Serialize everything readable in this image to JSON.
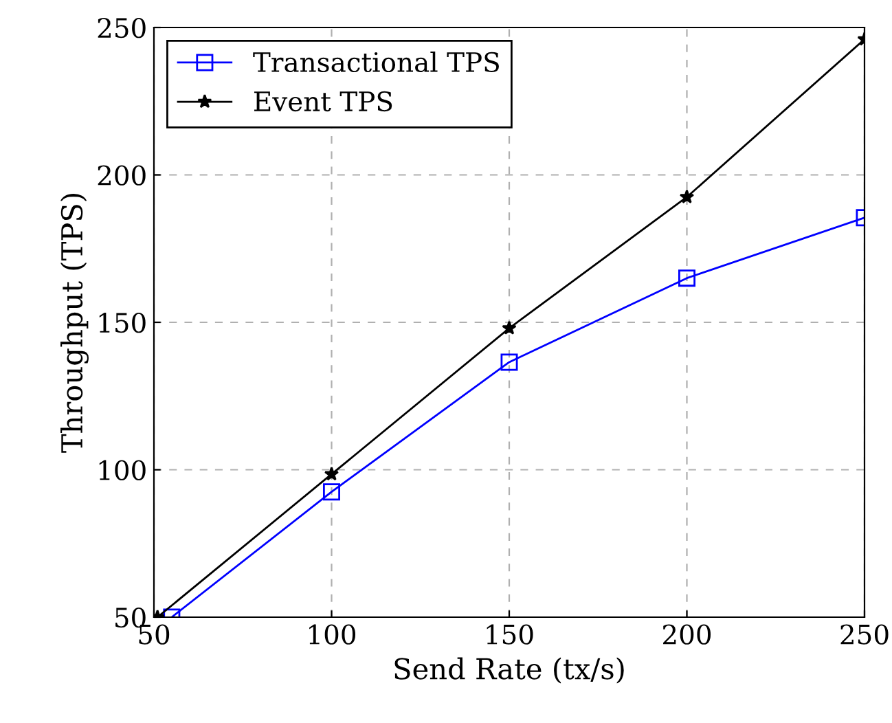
{
  "chart_data": {
    "type": "line",
    "xlabel": "Send Rate (tx/s)",
    "ylabel": "Throughput (TPS)",
    "series": [
      {
        "name": "Transactional TPS",
        "color": "#0000ff",
        "marker": "square",
        "x": [
          55,
          100,
          150,
          200,
          250
        ],
        "values": [
          50,
          92.5,
          136.5,
          165,
          185.5
        ]
      },
      {
        "name": "Event TPS",
        "color": "#000000",
        "marker": "star",
        "x": [
          51,
          100,
          150,
          200,
          250
        ],
        "values": [
          50,
          98.5,
          148,
          192.5,
          246
        ]
      }
    ],
    "xlim": [
      50,
      250
    ],
    "ylim": [
      50,
      250
    ],
    "xticks": [
      50,
      100,
      150,
      200,
      250
    ],
    "yticks": [
      50,
      100,
      150,
      200,
      250
    ],
    "grid": true,
    "legend": "top left",
    "line_style": "solid"
  }
}
